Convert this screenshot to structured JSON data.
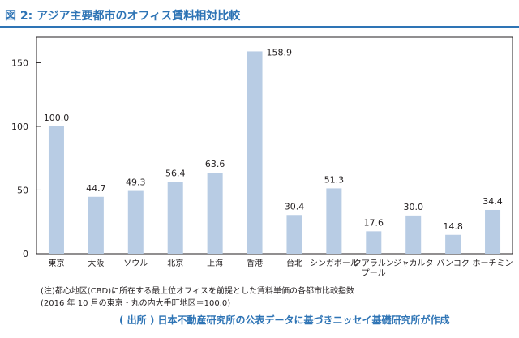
{
  "title": "図 2: アジア主要都市のオフィス賃料相対比較",
  "chart_data": {
    "type": "bar",
    "categories": [
      "東京",
      "大阪",
      "ソウル",
      "北京",
      "上海",
      "香港",
      "台北",
      "シンガポール",
      "クアラルン\nプール",
      "ジャカルタ",
      "バンコク",
      "ホーチミン"
    ],
    "values": [
      100.0,
      44.7,
      49.3,
      56.4,
      63.6,
      158.9,
      30.4,
      51.3,
      17.6,
      30.0,
      14.8,
      34.4
    ],
    "value_labels": [
      "100.0",
      "44.7",
      "49.3",
      "56.4",
      "63.6",
      "158.9",
      "30.4",
      "51.3",
      "17.6",
      "30.0",
      "14.8",
      "34.4"
    ],
    "yticks": [
      "0",
      "50",
      "100",
      "150"
    ],
    "ylim": [
      0,
      170
    ],
    "grid": false,
    "bar_color": "#b8cce4"
  },
  "notes": [
    "(注)都心地区(CBD)に所在する最上位オフィスを前提とした賃料単価の各都市比較指数",
    "(2016 年 10 月の東京・丸の内大手町地区＝100.0)"
  ],
  "source": "( 出所 ) 日本不動産研究所の公表データに基づきニッセイ基礎研究所が作成"
}
